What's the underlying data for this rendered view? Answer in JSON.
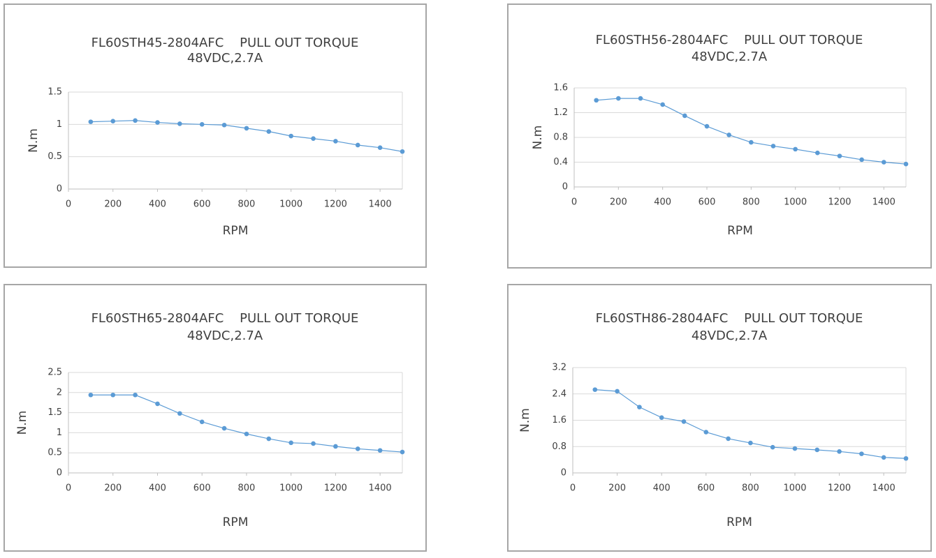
{
  "chart_data": [
    {
      "type": "line",
      "title": "FL60STH45-2804AFC    PULL OUT TORQUE",
      "subtitle": "48VDC,2.7A",
      "x_label": "RPM",
      "y_label": "N.m",
      "x": [
        100,
        200,
        300,
        400,
        500,
        600,
        700,
        800,
        900,
        1000,
        1100,
        1200,
        1300,
        1400,
        1500
      ],
      "series": [
        {
          "name": "Pull out torque",
          "color": "#5b9bd5",
          "values": [
            1.04,
            1.05,
            1.06,
            1.03,
            1.01,
            1.0,
            0.99,
            0.94,
            0.89,
            0.82,
            0.78,
            0.74,
            0.68,
            0.64,
            0.58
          ]
        }
      ],
      "xlim": [
        0,
        1500
      ],
      "xticks": [
        0,
        200,
        400,
        600,
        800,
        1000,
        1200,
        1400
      ],
      "ylim": [
        0,
        1.5
      ],
      "yticks": [
        0,
        0.5,
        1,
        1.5
      ],
      "grid": true
    },
    {
      "type": "line",
      "title": "FL60STH56-2804AFC    PULL OUT TORQUE",
      "subtitle": "48VDC,2.7A",
      "x_label": "RPM",
      "y_label": "N.m",
      "x": [
        100,
        200,
        300,
        400,
        500,
        600,
        700,
        800,
        900,
        1000,
        1100,
        1200,
        1300,
        1400,
        1500
      ],
      "series": [
        {
          "name": "Pull out torque",
          "color": "#5b9bd5",
          "values": [
            1.4,
            1.43,
            1.43,
            1.33,
            1.15,
            0.98,
            0.84,
            0.72,
            0.66,
            0.61,
            0.55,
            0.5,
            0.44,
            0.4,
            0.37
          ]
        }
      ],
      "xlim": [
        0,
        1500
      ],
      "xticks": [
        0,
        200,
        400,
        600,
        800,
        1000,
        1200,
        1400
      ],
      "ylim": [
        0,
        1.6
      ],
      "yticks": [
        0,
        0.4,
        0.8,
        1.2,
        1.6
      ],
      "grid": true
    },
    {
      "type": "line",
      "title": "FL60STH65-2804AFC    PULL OUT TORQUE",
      "subtitle": "48VDC,2.7A",
      "x_label": "RPM",
      "y_label": "N.m",
      "x": [
        100,
        200,
        300,
        400,
        500,
        600,
        700,
        800,
        900,
        1000,
        1100,
        1200,
        1300,
        1400,
        1500
      ],
      "series": [
        {
          "name": "Pull out torque",
          "color": "#5b9bd5",
          "values": [
            1.94,
            1.94,
            1.94,
            1.72,
            1.48,
            1.27,
            1.11,
            0.97,
            0.85,
            0.75,
            0.73,
            0.66,
            0.6,
            0.56,
            0.52
          ]
        }
      ],
      "xlim": [
        0,
        1500
      ],
      "xticks": [
        0,
        200,
        400,
        600,
        800,
        1000,
        1200,
        1400
      ],
      "ylim": [
        0,
        2.5
      ],
      "yticks": [
        0,
        0.5,
        1,
        1.5,
        2,
        2.5
      ],
      "grid": true
    },
    {
      "type": "line",
      "title": "FL60STH86-2804AFC    PULL OUT TORQUE",
      "subtitle": "48VDC,2.7A",
      "x_label": "RPM",
      "y_label": "N.m",
      "x": [
        100,
        200,
        300,
        400,
        500,
        600,
        700,
        800,
        900,
        1000,
        1100,
        1200,
        1300,
        1400,
        1500
      ],
      "series": [
        {
          "name": "Pull out torque",
          "color": "#5b9bd5",
          "values": [
            2.53,
            2.48,
            2.0,
            1.68,
            1.56,
            1.24,
            1.04,
            0.91,
            0.78,
            0.74,
            0.7,
            0.65,
            0.58,
            0.47,
            0.44
          ]
        }
      ],
      "xlim": [
        0,
        1500
      ],
      "xticks": [
        0,
        200,
        400,
        600,
        800,
        1000,
        1200,
        1400
      ],
      "ylim": [
        0,
        3.2
      ],
      "yticks": [
        0,
        0.8,
        1.6,
        2.4,
        3.2
      ],
      "grid": true
    }
  ]
}
